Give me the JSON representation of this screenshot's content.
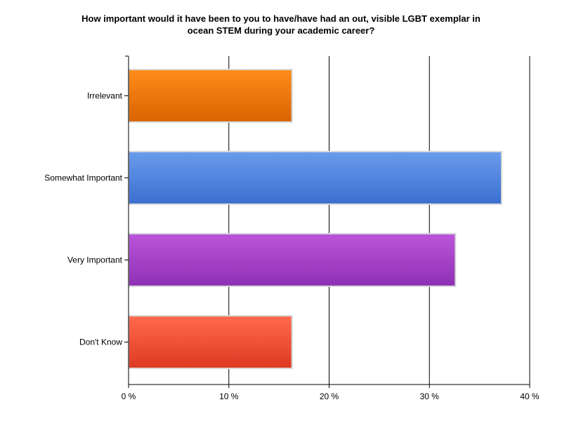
{
  "chart_data": {
    "type": "bar",
    "orientation": "horizontal",
    "title_lines": [
      "How important would it have been to you to have/have had an out, visible LGBT exemplar in",
      "ocean STEM during your academic career?"
    ],
    "categories": [
      "Irrelevant",
      "Somewhat Important",
      "Very Important",
      "Don't Know"
    ],
    "values": [
      16.3,
      37.2,
      32.6,
      16.3
    ],
    "colors": [
      [
        "#ff8c1a",
        "#d96300"
      ],
      [
        "#6a9cec",
        "#3a6fd0"
      ],
      [
        "#bb55d9",
        "#8e30b4"
      ],
      [
        "#ff6a4d",
        "#dd3a22"
      ]
    ],
    "xlim": [
      0,
      40
    ],
    "xticks": [
      0,
      10,
      20,
      30,
      40
    ],
    "xtick_labels": [
      "0 %",
      "10 %",
      "20 %",
      "30 %",
      "40 %"
    ],
    "grid": true,
    "legend": "none"
  }
}
